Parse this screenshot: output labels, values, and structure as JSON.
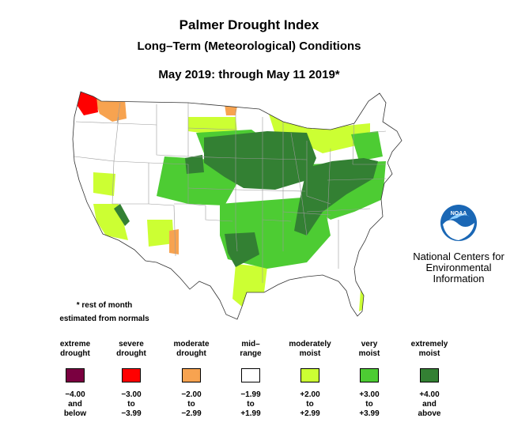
{
  "title": "Palmer Drought Index",
  "subtitle": "Long–Term (Meteorological) Conditions",
  "period": "May 2019: through May 11 2019*",
  "footnote": {
    "line1": "* rest of month",
    "line2": "estimated from normals"
  },
  "org": {
    "logo_text": "NOAA",
    "line1": "National Centers for",
    "line2": "Environmental",
    "line3": "Information"
  },
  "legend": [
    {
      "l1": "extreme",
      "l2": "drought",
      "color": "#7a0040",
      "r1": "−4.00",
      "r2": "and",
      "r3": "below"
    },
    {
      "l1": "severe",
      "l2": "drought",
      "color": "#ff0000",
      "r1": "−3.00",
      "r2": "to",
      "r3": "−3.99"
    },
    {
      "l1": "moderate",
      "l2": "drought",
      "color": "#f7a350",
      "r1": "−2.00",
      "r2": "to",
      "r3": "−2.99"
    },
    {
      "l1": "mid–",
      "l2": "range",
      "color": "#ffffff",
      "r1": "−1.99",
      "r2": "to",
      "r3": "+1.99"
    },
    {
      "l1": "moderately",
      "l2": "moist",
      "color": "#ccff33",
      "r1": "+2.00",
      "r2": "to",
      "r3": "+2.99"
    },
    {
      "l1": "very",
      "l2": "moist",
      "color": "#4dcc33",
      "r1": "+3.00",
      "r2": "to",
      "r3": "+3.99"
    },
    {
      "l1": "extremely",
      "l2": "moist",
      "color": "#338033",
      "r1": "+4.00",
      "r2": "and",
      "r3": "above"
    }
  ],
  "map": {
    "regions": [
      {
        "region": "Pacific Northwest coast",
        "category": "severe drought"
      },
      {
        "region": "Northern Idaho / Montana",
        "category": "moderate drought"
      },
      {
        "region": "Northern Plains to Ohio Valley",
        "category": "extremely moist"
      },
      {
        "region": "Southern Plains",
        "category": "very moist"
      },
      {
        "region": "Northeast",
        "category": "moderately moist"
      },
      {
        "region": "Great Basin / West",
        "category": "mid–range"
      }
    ]
  }
}
